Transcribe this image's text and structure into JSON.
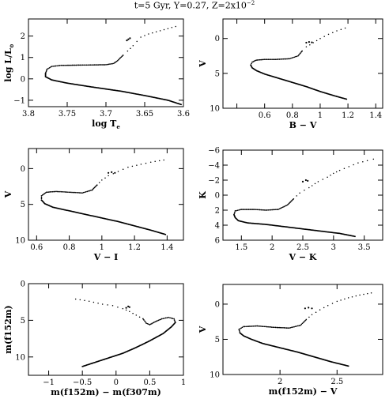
{
  "figure": {
    "title_main": "t=5 Gyr, Y=0.27, Z=2x10",
    "title_exp": "−2"
  },
  "chart_data": [
    {
      "type": "scatter",
      "xlabel": "log T",
      "xlabel_sub": "e",
      "ylabel": "log L/L",
      "ylabel_sub": "⊙",
      "xlim": [
        3.8,
        3.6
      ],
      "ylim": [
        -1.3,
        2.8
      ],
      "xticks": [
        3.8,
        3.75,
        3.7,
        3.65,
        3.6
      ],
      "xticklabels": [
        "3.8",
        "3.75",
        "3.7",
        "3.65",
        "3.6"
      ],
      "yticks": [
        -1,
        0,
        1,
        2
      ],
      "yticklabels": [
        "−1",
        "0",
        "1",
        "2"
      ],
      "ms": [
        [
          3.603,
          -1.2
        ],
        [
          3.62,
          -1.0
        ],
        [
          3.65,
          -0.78
        ],
        [
          3.68,
          -0.58
        ],
        [
          3.72,
          -0.37
        ],
        [
          3.75,
          -0.2
        ],
        [
          3.77,
          -0.05
        ],
        [
          3.778,
          0.1
        ],
        [
          3.778,
          0.25
        ]
      ],
      "turnoff": [
        [
          3.778,
          0.25
        ],
        [
          3.776,
          0.45
        ],
        [
          3.77,
          0.58
        ],
        [
          3.758,
          0.63
        ],
        [
          3.74,
          0.64
        ],
        [
          3.72,
          0.65
        ],
        [
          3.7,
          0.66
        ],
        [
          3.69,
          0.72
        ],
        [
          3.685,
          0.85
        ],
        [
          3.678,
          1.1
        ]
      ],
      "giant": [
        [
          3.678,
          1.1
        ],
        [
          3.672,
          1.3
        ],
        [
          3.665,
          1.55
        ],
        [
          3.66,
          1.75
        ],
        [
          3.655,
          1.95
        ],
        [
          3.645,
          2.1
        ],
        [
          3.63,
          2.25
        ],
        [
          3.62,
          2.35
        ],
        [
          3.61,
          2.45
        ]
      ],
      "clump": [
        [
          3.673,
          1.8
        ],
        [
          3.671,
          1.85
        ],
        [
          3.669,
          1.9
        ]
      ]
    },
    {
      "type": "scatter",
      "xlabel": "B − V",
      "ylabel": "V",
      "xlim": [
        0.3,
        1.45
      ],
      "ylim": [
        10,
        -2.8
      ],
      "xticks": [
        0.4,
        0.6,
        0.8,
        1.0,
        1.2,
        1.4
      ],
      "xticklabels": [
        "",
        "0.6",
        "0.8",
        "1",
        "1.2",
        "1.4"
      ],
      "yticks": [
        0,
        5,
        10
      ],
      "yticklabels": [
        "0",
        "5",
        "10"
      ],
      "ms": [
        [
          1.19,
          8.7
        ],
        [
          1.1,
          8.2
        ],
        [
          1.0,
          7.6
        ],
        [
          0.9,
          6.9
        ],
        [
          0.8,
          6.3
        ],
        [
          0.7,
          5.7
        ],
        [
          0.6,
          5.1
        ],
        [
          0.54,
          4.6
        ],
        [
          0.51,
          4.2
        ],
        [
          0.5,
          3.8
        ]
      ],
      "turnoff": [
        [
          0.5,
          3.8
        ],
        [
          0.51,
          3.4
        ],
        [
          0.54,
          3.1
        ],
        [
          0.6,
          3.0
        ],
        [
          0.68,
          3.0
        ],
        [
          0.78,
          2.9
        ],
        [
          0.84,
          2.5
        ],
        [
          0.87,
          1.8
        ]
      ],
      "giant": [
        [
          0.87,
          1.8
        ],
        [
          0.9,
          1.2
        ],
        [
          0.95,
          0.6
        ],
        [
          1.0,
          0.0
        ],
        [
          1.06,
          -0.6
        ],
        [
          1.12,
          -1.1
        ],
        [
          1.18,
          -1.5
        ]
      ],
      "clump": [
        [
          0.9,
          0.6
        ],
        [
          0.92,
          0.5
        ],
        [
          0.94,
          0.55
        ]
      ]
    },
    {
      "type": "scatter",
      "xlabel": "V − I",
      "ylabel": "V",
      "xlim": [
        0.55,
        1.5
      ],
      "ylim": [
        10,
        -2.8
      ],
      "xticks": [
        0.6,
        0.8,
        1.0,
        1.2,
        1.4
      ],
      "xticklabels": [
        "0.6",
        "0.8",
        "1",
        "1.2",
        "1.4"
      ],
      "yticks": [
        0,
        5,
        10
      ],
      "yticklabels": [
        "0",
        "5",
        "10"
      ],
      "ms": [
        [
          1.39,
          9.2
        ],
        [
          1.3,
          8.6
        ],
        [
          1.2,
          8.0
        ],
        [
          1.1,
          7.4
        ],
        [
          1.0,
          6.9
        ],
        [
          0.9,
          6.4
        ],
        [
          0.8,
          5.9
        ],
        [
          0.7,
          5.4
        ],
        [
          0.65,
          4.9
        ],
        [
          0.63,
          4.4
        ]
      ],
      "turnoff": [
        [
          0.63,
          4.4
        ],
        [
          0.63,
          3.8
        ],
        [
          0.66,
          3.3
        ],
        [
          0.72,
          3.2
        ],
        [
          0.8,
          3.3
        ],
        [
          0.88,
          3.4
        ],
        [
          0.94,
          3.0
        ],
        [
          0.97,
          2.3
        ]
      ],
      "giant": [
        [
          0.97,
          2.3
        ],
        [
          1.0,
          1.6
        ],
        [
          1.04,
          1.0
        ],
        [
          1.1,
          0.4
        ],
        [
          1.16,
          -0.2
        ],
        [
          1.24,
          -0.6
        ],
        [
          1.3,
          -0.9
        ],
        [
          1.38,
          -1.2
        ]
      ],
      "clump": [
        [
          1.04,
          0.6
        ],
        [
          1.06,
          0.5
        ],
        [
          1.08,
          0.6
        ]
      ]
    },
    {
      "type": "scatter",
      "xlabel": "V − K",
      "ylabel": "K",
      "xlim": [
        1.2,
        3.8
      ],
      "ylim": [
        6,
        -6
      ],
      "xticks": [
        1.5,
        2.0,
        2.5,
        3.0,
        3.5
      ],
      "xticklabels": [
        "1.5",
        "2",
        "2.5",
        "3",
        "3.5"
      ],
      "yticks": [
        -6,
        -4,
        -2,
        0,
        2,
        4,
        6
      ],
      "yticklabels": [
        "−6",
        "−4",
        "−2",
        "0",
        "2",
        "4",
        "6"
      ],
      "ms": [
        [
          3.35,
          5.5
        ],
        [
          3.1,
          5.1
        ],
        [
          2.8,
          4.8
        ],
        [
          2.5,
          4.5
        ],
        [
          2.2,
          4.2
        ],
        [
          1.9,
          3.9
        ],
        [
          1.6,
          3.7
        ],
        [
          1.45,
          3.4
        ],
        [
          1.4,
          3.0
        ],
        [
          1.38,
          2.6
        ]
      ],
      "turnoff": [
        [
          1.38,
          2.6
        ],
        [
          1.4,
          2.1
        ],
        [
          1.5,
          1.9
        ],
        [
          1.7,
          1.9
        ],
        [
          1.9,
          2.0
        ],
        [
          2.1,
          1.9
        ],
        [
          2.25,
          1.3
        ],
        [
          2.35,
          0.5
        ]
      ],
      "giant": [
        [
          2.35,
          0.5
        ],
        [
          2.45,
          -0.3
        ],
        [
          2.6,
          -1.0
        ],
        [
          2.75,
          -1.8
        ],
        [
          2.9,
          -2.4
        ],
        [
          3.0,
          -2.9
        ],
        [
          3.1,
          -3.3
        ],
        [
          3.25,
          -3.8
        ],
        [
          3.4,
          -4.3
        ],
        [
          3.55,
          -4.6
        ],
        [
          3.65,
          -4.8
        ]
      ],
      "clump": [
        [
          2.5,
          -1.8
        ],
        [
          2.55,
          -2.0
        ],
        [
          2.58,
          -1.9
        ]
      ]
    },
    {
      "type": "scatter",
      "xlabel": "m(f152m) − m(f307m)",
      "ylabel": "m(f152m)",
      "xlim": [
        -1.3,
        1.0
      ],
      "ylim": [
        12.5,
        0
      ],
      "xticks": [
        -1,
        -0.5,
        0,
        0.5,
        1
      ],
      "xticklabels": [
        "−1",
        "−0.5",
        "0",
        "0.5",
        "1"
      ],
      "yticks": [
        0,
        5,
        10
      ],
      "yticklabels": [
        "0",
        "5",
        "10"
      ],
      "ms": [
        [
          -0.5,
          11.3
        ],
        [
          -0.3,
          10.7
        ],
        [
          -0.1,
          10.1
        ],
        [
          0.1,
          9.5
        ],
        [
          0.3,
          8.7
        ],
        [
          0.5,
          7.8
        ],
        [
          0.7,
          6.8
        ],
        [
          0.82,
          5.9
        ],
        [
          0.88,
          5.3
        ]
      ],
      "turnoff": [
        [
          0.88,
          5.3
        ],
        [
          0.86,
          4.8
        ],
        [
          0.78,
          4.6
        ],
        [
          0.68,
          4.8
        ],
        [
          0.58,
          5.2
        ],
        [
          0.5,
          5.6
        ],
        [
          0.45,
          5.4
        ],
        [
          0.4,
          4.8
        ]
      ],
      "giant": [
        [
          0.4,
          4.8
        ],
        [
          0.3,
          4.3
        ],
        [
          0.2,
          3.8
        ],
        [
          0.1,
          3.4
        ],
        [
          -0.05,
          3.0
        ],
        [
          -0.2,
          2.8
        ],
        [
          -0.4,
          2.4
        ],
        [
          -0.6,
          2.1
        ]
      ],
      "clump": [
        [
          0.15,
          3.3
        ],
        [
          0.18,
          3.1
        ],
        [
          0.2,
          3.2
        ]
      ]
    },
    {
      "type": "scatter",
      "xlabel": "m(f152m) − V",
      "ylabel": "V",
      "xlim": [
        1.5,
        2.9
      ],
      "ylim": [
        10,
        -2.8
      ],
      "xticks": [
        2.0,
        2.5
      ],
      "xticklabels": [
        "2",
        "2.5"
      ],
      "yticks": [
        0,
        5,
        10
      ],
      "yticklabels": [
        "0",
        "5",
        "10"
      ],
      "ms": [
        [
          2.6,
          8.8
        ],
        [
          2.45,
          8.2
        ],
        [
          2.3,
          7.5
        ],
        [
          2.15,
          6.8
        ],
        [
          2.0,
          6.2
        ],
        [
          1.85,
          5.6
        ],
        [
          1.75,
          5.0
        ],
        [
          1.68,
          4.5
        ],
        [
          1.65,
          4.1
        ]
      ],
      "turnoff": [
        [
          1.65,
          4.1
        ],
        [
          1.64,
          3.6
        ],
        [
          1.68,
          3.2
        ],
        [
          1.8,
          3.1
        ],
        [
          1.95,
          3.3
        ],
        [
          2.08,
          3.4
        ],
        [
          2.18,
          3.0
        ],
        [
          2.23,
          2.2
        ]
      ],
      "giant": [
        [
          2.23,
          2.2
        ],
        [
          2.28,
          1.5
        ],
        [
          2.35,
          0.8
        ],
        [
          2.42,
          0.2
        ],
        [
          2.5,
          -0.4
        ],
        [
          2.6,
          -0.9
        ],
        [
          2.7,
          -1.3
        ],
        [
          2.8,
          -1.6
        ]
      ],
      "clump": [
        [
          2.22,
          0.6
        ],
        [
          2.25,
          0.5
        ],
        [
          2.28,
          0.6
        ]
      ]
    }
  ]
}
